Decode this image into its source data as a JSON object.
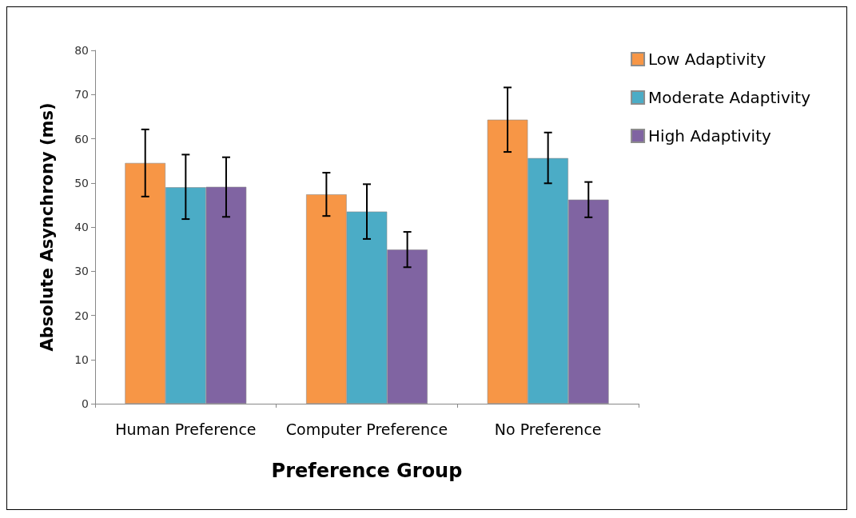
{
  "chart_data": {
    "type": "bar",
    "xlabel": "Preference Group",
    "ylabel": "Absolute Asynchrony (ms)",
    "categories": [
      "Human Preference",
      "Computer Preference",
      "No Preference"
    ],
    "series": [
      {
        "name": "Low Adaptivity",
        "color": "#f79646",
        "values": [
          54.5,
          47.4,
          64.3
        ],
        "errors": [
          [
            46.9,
            62.1
          ],
          [
            42.5,
            52.3
          ],
          [
            57.0,
            71.6
          ]
        ]
      },
      {
        "name": "Moderate Adaptivity",
        "color": "#4bacc6",
        "values": [
          49.0,
          43.5,
          55.6
        ],
        "errors": [
          [
            41.8,
            56.4
          ],
          [
            37.3,
            49.7
          ],
          [
            49.9,
            61.4
          ]
        ]
      },
      {
        "name": "High Adaptivity",
        "color": "#8064a2",
        "values": [
          49.1,
          34.9,
          46.2
        ],
        "errors": [
          [
            42.3,
            55.8
          ],
          [
            30.9,
            38.9
          ],
          [
            42.2,
            50.2
          ]
        ]
      }
    ],
    "ylim": [
      0,
      80
    ],
    "yticks": [
      0,
      10,
      20,
      30,
      40,
      50,
      60,
      70,
      80
    ],
    "grid": false,
    "legend": "top right"
  }
}
